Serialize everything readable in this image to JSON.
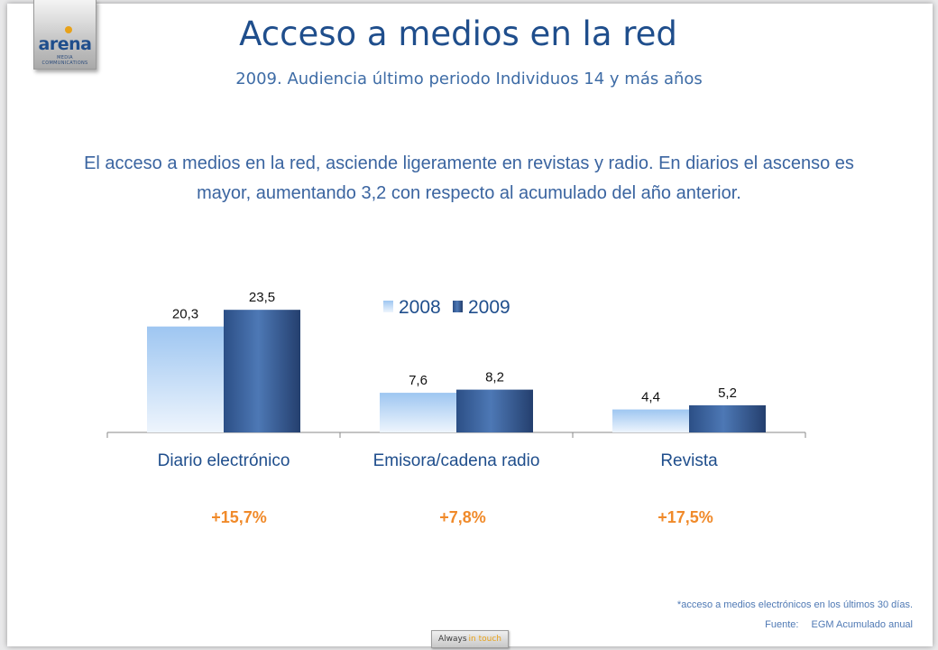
{
  "logo": {
    "word": "arena",
    "tagline": "MEDIA COMMUNICATIONS"
  },
  "title": "Acceso a medios en la red",
  "subtitle": "2009. Audiencia último periodo Individuos 14 y más años",
  "body_text": "El acceso a medios en la red, asciende ligeramente en revistas y radio. En diarios el ascenso es mayor, aumentando 3,2 con respecto al acumulado del año anterior.",
  "chart_data": {
    "type": "bar",
    "categories": [
      "Diario electrónico",
      "Emisora/cadena radio",
      "Revista"
    ],
    "series": [
      {
        "name": "2008",
        "values": [
          20.3,
          7.6,
          4.4
        ],
        "labels": [
          "20,3",
          "7,6",
          "4,4"
        ],
        "color": "#a9cdf3"
      },
      {
        "name": "2009",
        "values": [
          23.5,
          8.2,
          5.2
        ],
        "labels": [
          "23,5",
          "8,2",
          "5,2"
        ],
        "color": "#3c65a3"
      }
    ],
    "legend": "top-center",
    "grid": false,
    "changes": [
      "+15,7%",
      "+7,8%",
      "+17,5%"
    ],
    "change_color": "#f08a2a"
  },
  "footnote": "*acceso a medios electrónicos en los últimos 30 días.",
  "source": {
    "label": "Fuente:",
    "value": "EGM Acumulado anual"
  },
  "tag": {
    "text": "Always",
    "accent": "in touch"
  },
  "colors": {
    "title": "#1f4e8c",
    "text": "#3a64a0",
    "accent": "#e8a21a"
  }
}
